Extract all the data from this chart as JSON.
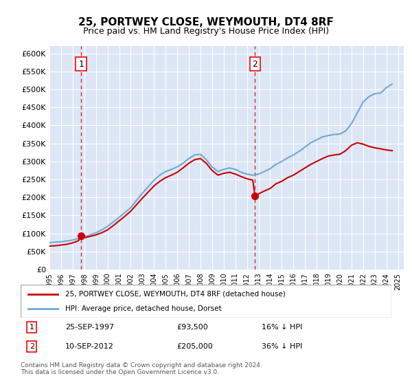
{
  "title": "25, PORTWEY CLOSE, WEYMOUTH, DT4 8RF",
  "subtitle": "Price paid vs. HM Land Registry's House Price Index (HPI)",
  "background_color": "#dce6f5",
  "plot_bg_color": "#dce6f5",
  "ylim": [
    0,
    620000
  ],
  "yticks": [
    0,
    50000,
    100000,
    150000,
    200000,
    250000,
    300000,
    350000,
    400000,
    450000,
    500000,
    550000,
    600000
  ],
  "ylabel_format": "£{0}K",
  "sale1": {
    "date_num": 1997.73,
    "price": 93500,
    "label": "1"
  },
  "sale2": {
    "date_num": 2012.69,
    "price": 205000,
    "label": "2"
  },
  "hpi_color": "#6fa8d5",
  "price_color": "#cc0000",
  "legend_label1": "25, PORTWEY CLOSE, WEYMOUTH, DT4 8RF (detached house)",
  "legend_label2": "HPI: Average price, detached house, Dorset",
  "table_rows": [
    {
      "label": "1",
      "date": "25-SEP-1997",
      "price": "£93,500",
      "hpi": "16% ↓ HPI"
    },
    {
      "label": "2",
      "date": "10-SEP-2012",
      "price": "£205,000",
      "hpi": "36% ↓ HPI"
    }
  ],
  "footnote": "Contains HM Land Registry data © Crown copyright and database right 2024.\nThis data is licensed under the Open Government Licence v3.0.",
  "hpi_data": {
    "years": [
      1995,
      1995.5,
      1996,
      1996.5,
      1997,
      1997.5,
      1998,
      1998.5,
      1999,
      1999.5,
      2000,
      2000.5,
      2001,
      2001.5,
      2002,
      2002.5,
      2003,
      2003.5,
      2004,
      2004.5,
      2005,
      2005.5,
      2006,
      2006.5,
      2007,
      2007.5,
      2008,
      2008.5,
      2009,
      2009.5,
      2010,
      2010.5,
      2011,
      2011.5,
      2012,
      2012.5,
      2013,
      2013.5,
      2014,
      2014.5,
      2015,
      2015.5,
      2016,
      2016.5,
      2017,
      2017.5,
      2018,
      2018.5,
      2019,
      2019.5,
      2020,
      2020.5,
      2021,
      2021.5,
      2022,
      2022.5,
      2023,
      2023.5,
      2024,
      2024.5
    ],
    "values": [
      75000,
      76000,
      77000,
      79000,
      82000,
      86000,
      91000,
      96000,
      102000,
      110000,
      120000,
      132000,
      145000,
      158000,
      172000,
      192000,
      212000,
      230000,
      248000,
      262000,
      272000,
      278000,
      285000,
      295000,
      308000,
      318000,
      320000,
      305000,
      285000,
      272000,
      278000,
      282000,
      278000,
      270000,
      265000,
      262000,
      265000,
      272000,
      280000,
      292000,
      300000,
      310000,
      318000,
      328000,
      340000,
      352000,
      360000,
      368000,
      372000,
      375000,
      376000,
      385000,
      405000,
      435000,
      465000,
      480000,
      488000,
      490000,
      505000,
      515000
    ]
  },
  "price_data": {
    "years": [
      1995,
      1995.5,
      1996,
      1996.5,
      1997,
      1997.5,
      1997.73,
      1998,
      1998.5,
      1999,
      1999.5,
      2000,
      2000.5,
      2001,
      2001.5,
      2002,
      2002.5,
      2003,
      2003.5,
      2004,
      2004.5,
      2005,
      2005.5,
      2006,
      2006.5,
      2007,
      2007.5,
      2008,
      2008.5,
      2009,
      2009.5,
      2010,
      2010.5,
      2011,
      2011.5,
      2012,
      2012.5,
      2012.69,
      2013,
      2013.5,
      2014,
      2014.5,
      2015,
      2015.5,
      2016,
      2016.5,
      2017,
      2017.5,
      2018,
      2018.5,
      2019,
      2019.5,
      2020,
      2020.5,
      2021,
      2021.5,
      2022,
      2022.5,
      2023,
      2023.5,
      2024,
      2024.5
    ],
    "values": [
      65000,
      66000,
      68000,
      70000,
      74000,
      80000,
      93500,
      88000,
      92000,
      96000,
      102000,
      110000,
      122000,
      135000,
      148000,
      162000,
      180000,
      198000,
      215000,
      232000,
      245000,
      255000,
      262000,
      270000,
      282000,
      295000,
      305000,
      308000,
      295000,
      275000,
      262000,
      267000,
      270000,
      265000,
      258000,
      252000,
      248000,
      205000,
      210000,
      218000,
      225000,
      238000,
      245000,
      255000,
      262000,
      272000,
      282000,
      292000,
      300000,
      308000,
      315000,
      318000,
      320000,
      330000,
      345000,
      352000,
      348000,
      342000,
      338000,
      335000,
      332000,
      330000
    ]
  }
}
